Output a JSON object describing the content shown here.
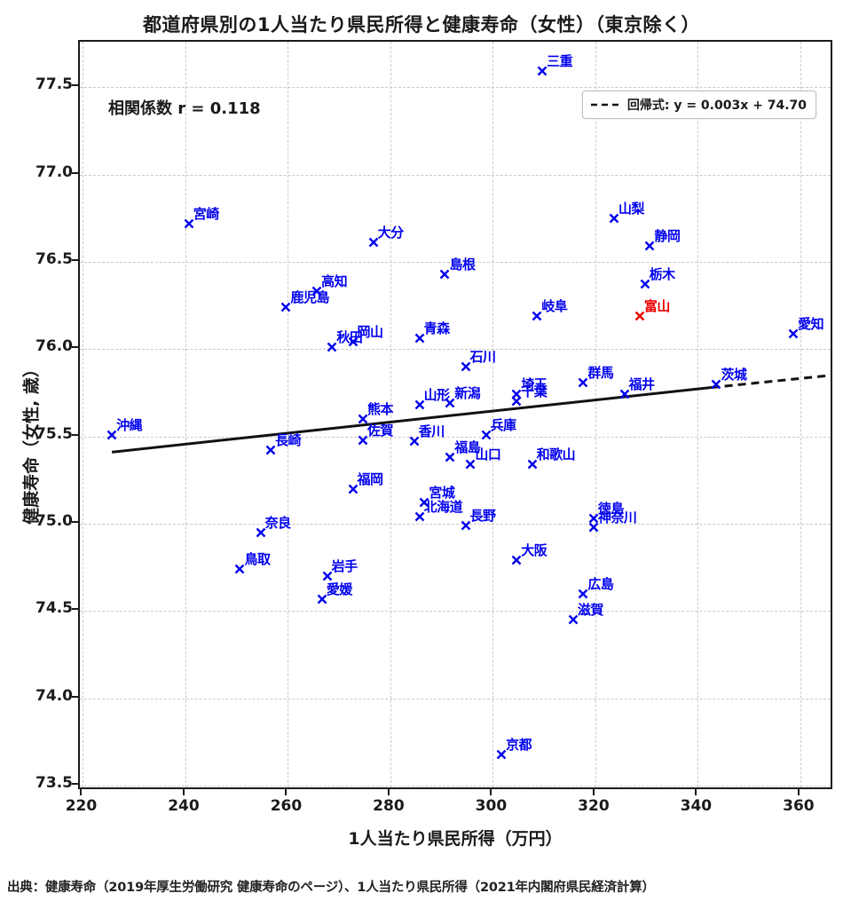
{
  "title": "都道府県別の1人当たり県民所得と健康寿命（女性）（東京除く）",
  "annotation": {
    "correlation": "相関係数 r = 0.118"
  },
  "legend": {
    "label": "回帰式: y = 0.003x + 74.70"
  },
  "source": "出典：健康寿命（2019年厚生労働研究 健康寿命のページ）、1人当たり県民所得（2021年内閣府県民経済計算）",
  "colors": {
    "marker": "#0000ee",
    "highlight": "#ee0000",
    "regression_line": "#111111",
    "grid": "#c9c9c9",
    "text": "#1a1a1a"
  },
  "chart_data": {
    "type": "scatter",
    "title": "都道府県別の1人当たり県民所得と健康寿命（女性）（東京除く）",
    "xlabel": "1人当たり県民所得（万円）",
    "ylabel": "健康寿命（女性, 歳）",
    "xlim": [
      219.4,
      366.6
    ],
    "ylim": [
      73.47,
      77.76
    ],
    "xticks": [
      220,
      240,
      260,
      280,
      300,
      320,
      340,
      360
    ],
    "yticks": [
      73.5,
      74.0,
      74.5,
      75.0,
      75.5,
      76.0,
      76.5,
      77.0,
      77.5
    ],
    "grid": true,
    "legend_position": "upper right",
    "regression": {
      "equation": "y = 0.003x + 74.70",
      "solid_segment": {
        "x1": 226,
        "y1": 75.4,
        "x2": 343,
        "y2": 75.77
      },
      "dashed_segment": {
        "x1": 343,
        "y1": 75.77,
        "x2": 366.5,
        "y2": 75.84
      }
    },
    "points": [
      {
        "name": "三重",
        "x": 310,
        "y": 77.58,
        "highlight": false
      },
      {
        "name": "山梨",
        "x": 324,
        "y": 76.74,
        "highlight": false
      },
      {
        "name": "宮崎",
        "x": 241,
        "y": 76.71,
        "highlight": false
      },
      {
        "name": "大分",
        "x": 277,
        "y": 76.6,
        "highlight": false
      },
      {
        "name": "静岡",
        "x": 331,
        "y": 76.58,
        "highlight": false
      },
      {
        "name": "島根",
        "x": 291,
        "y": 76.42,
        "highlight": false
      },
      {
        "name": "栃木",
        "x": 330,
        "y": 76.36,
        "highlight": false
      },
      {
        "name": "高知",
        "x": 266,
        "y": 76.32,
        "highlight": false
      },
      {
        "name": "鹿児島",
        "x": 260,
        "y": 76.23,
        "highlight": false
      },
      {
        "name": "富山",
        "x": 329,
        "y": 76.18,
        "highlight": true
      },
      {
        "name": "岐阜",
        "x": 309,
        "y": 76.18,
        "highlight": false
      },
      {
        "name": "愛知",
        "x": 359,
        "y": 76.08,
        "highlight": false
      },
      {
        "name": "青森",
        "x": 286,
        "y": 76.05,
        "highlight": false
      },
      {
        "name": "岡山",
        "x": 273,
        "y": 76.03,
        "highlight": false
      },
      {
        "name": "秋田",
        "x": 269,
        "y": 76.0,
        "highlight": false
      },
      {
        "name": "石川",
        "x": 295,
        "y": 75.89,
        "highlight": false
      },
      {
        "name": "群馬",
        "x": 318,
        "y": 75.8,
        "highlight": false
      },
      {
        "name": "茨城",
        "x": 344,
        "y": 75.79,
        "highlight": false
      },
      {
        "name": "福井",
        "x": 326,
        "y": 75.73,
        "highlight": false
      },
      {
        "name": "埼玉",
        "x": 305,
        "y": 75.73,
        "highlight": false
      },
      {
        "name": "千葉",
        "x": 305,
        "y": 75.69,
        "highlight": false
      },
      {
        "name": "新潟",
        "x": 292,
        "y": 75.68,
        "highlight": false
      },
      {
        "name": "山形",
        "x": 286,
        "y": 75.67,
        "highlight": false
      },
      {
        "name": "熊本",
        "x": 275,
        "y": 75.59,
        "highlight": false
      },
      {
        "name": "沖縄",
        "x": 226,
        "y": 75.5,
        "highlight": false
      },
      {
        "name": "兵庫",
        "x": 299,
        "y": 75.5,
        "highlight": false
      },
      {
        "name": "佐賀",
        "x": 275,
        "y": 75.47,
        "highlight": false
      },
      {
        "name": "香川",
        "x": 285,
        "y": 75.46,
        "highlight": false
      },
      {
        "name": "長崎",
        "x": 257,
        "y": 75.41,
        "highlight": false
      },
      {
        "name": "福島",
        "x": 292,
        "y": 75.37,
        "highlight": false
      },
      {
        "name": "山口",
        "x": 296,
        "y": 75.33,
        "highlight": false
      },
      {
        "name": "和歌山",
        "x": 308,
        "y": 75.33,
        "highlight": false
      },
      {
        "name": "福岡",
        "x": 273,
        "y": 75.19,
        "highlight": false
      },
      {
        "name": "宮城",
        "x": 287,
        "y": 75.11,
        "highlight": false
      },
      {
        "name": "北海道",
        "x": 286,
        "y": 75.03,
        "highlight": false
      },
      {
        "name": "徳島",
        "x": 320,
        "y": 75.02,
        "highlight": false
      },
      {
        "name": "長野",
        "x": 295,
        "y": 74.98,
        "highlight": false
      },
      {
        "name": "神奈川",
        "x": 320,
        "y": 74.97,
        "highlight": false
      },
      {
        "name": "奈良",
        "x": 255,
        "y": 74.94,
        "highlight": false
      },
      {
        "name": "大阪",
        "x": 305,
        "y": 74.78,
        "highlight": false
      },
      {
        "name": "鳥取",
        "x": 251,
        "y": 74.73,
        "highlight": false
      },
      {
        "name": "岩手",
        "x": 268,
        "y": 74.69,
        "highlight": false
      },
      {
        "name": "広島",
        "x": 318,
        "y": 74.59,
        "highlight": false
      },
      {
        "name": "愛媛",
        "x": 267,
        "y": 74.56,
        "highlight": false
      },
      {
        "name": "滋賀",
        "x": 316,
        "y": 74.44,
        "highlight": false
      },
      {
        "name": "京都",
        "x": 302,
        "y": 73.67,
        "highlight": false
      }
    ]
  }
}
